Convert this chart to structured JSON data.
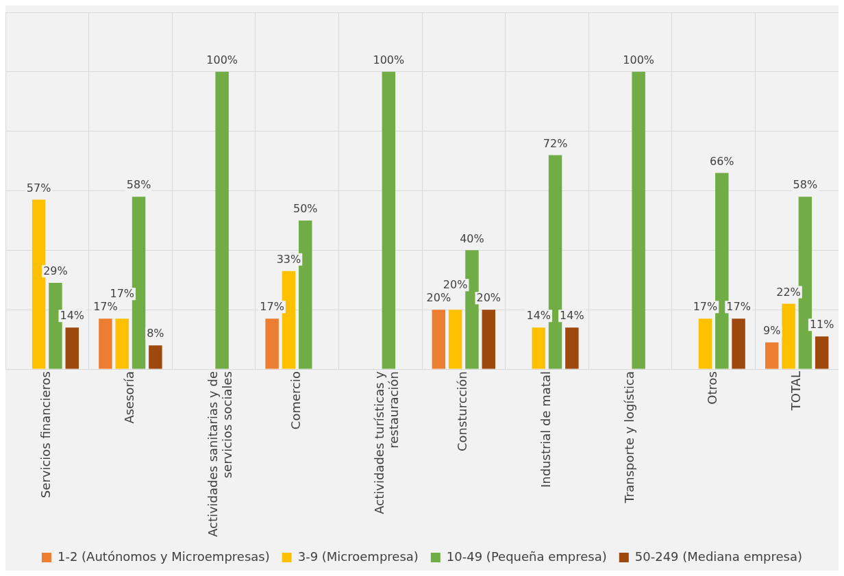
{
  "chart_data": {
    "type": "bar",
    "categories": [
      "Servicios financieros",
      "Asesoría",
      "Actividades sanitarias y de servicios sociales",
      "Comercio",
      "Actividades turísticas y restauración",
      "Consturcción",
      "Industrial de matal",
      "Transporte y logística",
      "Otros",
      "TOTAL"
    ],
    "series": [
      {
        "name": "1-2 (Autónomos y Microempresas)",
        "color": "#ed7d31",
        "values": [
          null,
          17,
          null,
          17,
          null,
          20,
          null,
          null,
          null,
          9
        ],
        "value_labels": [
          null,
          "17%",
          null,
          "17%",
          null,
          "20%",
          null,
          null,
          null,
          "9%"
        ]
      },
      {
        "name": "3-9 (Microempresa)",
        "color": "#ffc000",
        "values": [
          57,
          17,
          null,
          33,
          null,
          20,
          14,
          null,
          17,
          22
        ],
        "value_labels": [
          "57%",
          "17%",
          null,
          "33%",
          null,
          "20%",
          "14%",
          null,
          "17%",
          "22%"
        ]
      },
      {
        "name": "10-49 (Pequeña empresa)",
        "color": "#70ad47",
        "values": [
          29,
          58,
          100,
          50,
          100,
          40,
          72,
          100,
          66,
          58
        ],
        "value_labels": [
          "29%",
          "58%",
          "100%",
          "50%",
          "100%",
          "40%",
          "72%",
          "100%",
          "66%",
          "58%"
        ]
      },
      {
        "name": "50-249 (Mediana empresa)",
        "color": "#9e480e",
        "values": [
          14,
          8,
          null,
          null,
          null,
          20,
          14,
          null,
          17,
          11
        ],
        "value_labels": [
          "14%",
          "8%",
          null,
          null,
          null,
          "20%",
          "14%",
          null,
          "17%",
          "11%"
        ]
      }
    ],
    "tick_labels": "x",
    "grid": true,
    "legend": "bottom"
  }
}
